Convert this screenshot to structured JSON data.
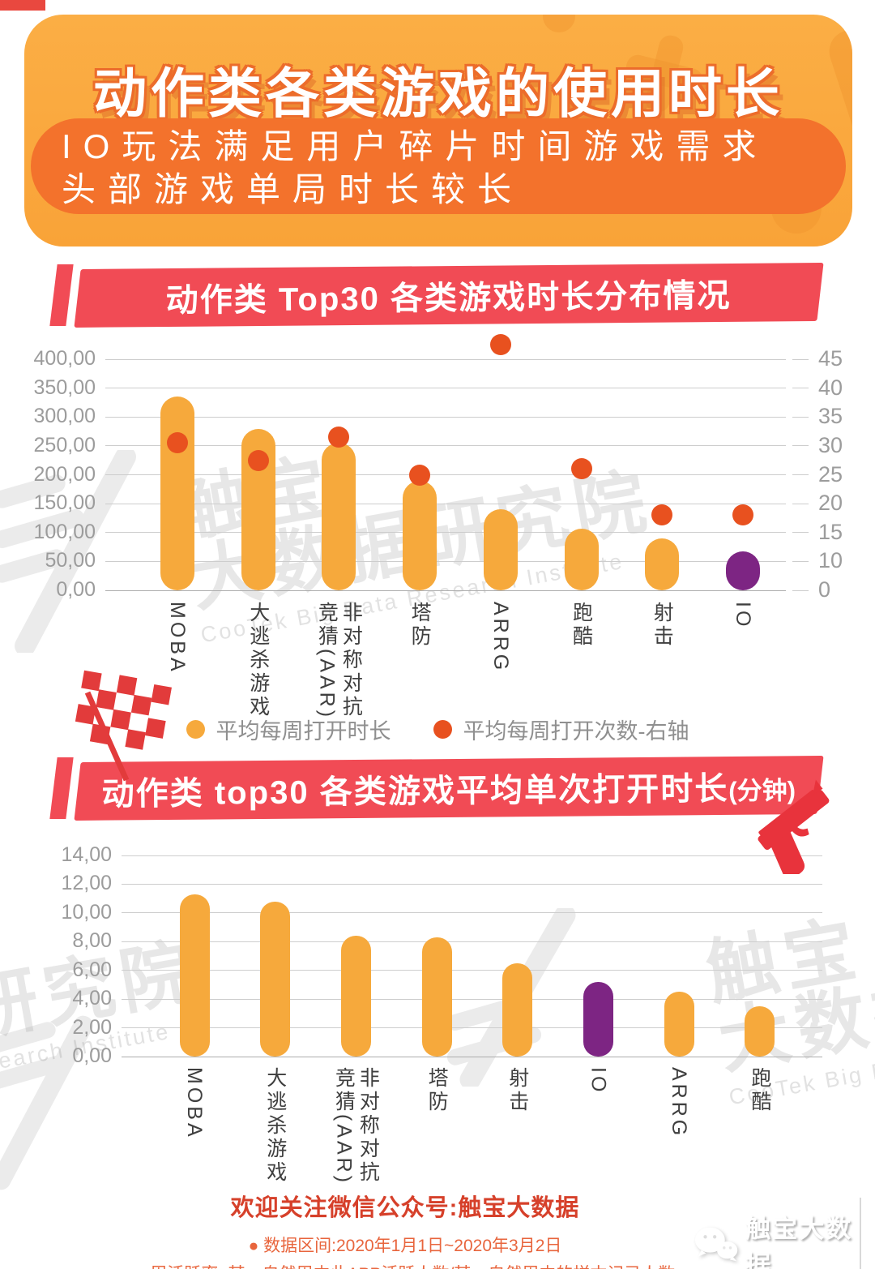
{
  "header": {
    "title": "动作类各类游戏的使用时长",
    "subtitle1": "IO玩法满足用户碎片时间游戏需求",
    "subtitle2": "头部游戏单局时长较长"
  },
  "colors": {
    "bar": "#F6A93C",
    "highlight": "#7D2583",
    "dot": "#E8511F",
    "banner": "#F14B55",
    "grid": "#CDCDCD",
    "baseline": "#ADADAD",
    "axis_text": "#9C9C9C",
    "category_text": "#3F3F3F",
    "header_bg": "#FAAA3E",
    "header_inner": "#F3722C"
  },
  "banners": [
    {
      "title": "动作类 Top30 各类游戏时长分布情况",
      "suffix": ""
    },
    {
      "title": "动作类 top30 各类游戏平均单次打开时长",
      "suffix": "(分钟)"
    }
  ],
  "legend": {
    "items": [
      {
        "label": "平均每周打开时长"
      },
      {
        "label": "平均每周打开次数-右轴"
      }
    ]
  },
  "chart_data": [
    {
      "type": "bar",
      "title": "动作类 Top30 各类游戏时长分布情况",
      "categories": [
        "MOBA",
        "大逃杀游戏",
        "非对称对抗竞猜(AAR)",
        "塔防",
        "ARRG",
        "跑酷",
        "射击",
        "IO"
      ],
      "series": [
        {
          "name": "平均每周打开时长",
          "type": "bar",
          "axis": "left",
          "values": [
            335,
            280,
            255,
            190,
            140,
            107,
            90,
            67
          ]
        },
        {
          "name": "平均每周打开次数-右轴",
          "type": "scatter",
          "axis": "right",
          "values": [
            30.5,
            27.5,
            31.5,
            25,
            47.5,
            26,
            18,
            18
          ]
        }
      ],
      "left_axis_ticks": [
        "400,00",
        "350,00",
        "300,00",
        "250,00",
        "200,00",
        "150,00",
        "100,00",
        "50,00",
        "0,00"
      ],
      "right_axis_ticks": [
        "45",
        "40",
        "35",
        "30",
        "25",
        "20",
        "15",
        "10",
        "0"
      ],
      "left_axis_range": [
        0,
        400
      ],
      "grid": true,
      "legend_position": "bottom",
      "highlight_category": "IO"
    },
    {
      "type": "bar",
      "title": "动作类 top30 各类游戏平均单次打开时长(分钟)",
      "categories": [
        "MOBA",
        "大逃杀游戏",
        "非对称对抗竞猜(AAR)",
        "塔防",
        "射击",
        "IO",
        "ARRG",
        "跑酷"
      ],
      "values": [
        11.3,
        10.8,
        8.4,
        8.3,
        6.5,
        5.2,
        4.5,
        3.5
      ],
      "axis_ticks": [
        "14,00",
        "12,00",
        "10,00",
        "8,00",
        "6,00",
        "4,00",
        "2,00",
        "0,00"
      ],
      "ylim": [
        0,
        14
      ],
      "grid": true,
      "highlight_category": "IO"
    }
  ],
  "watermark": {
    "line1": "触宝",
    "line2": "大数据研究院",
    "en": "CooTek Big Data Research Institute"
  },
  "footer": {
    "line1": "欢迎关注微信公众号:触宝大数据",
    "line2": "● 数据区间:2020年1月1日~2020年3月2日",
    "line3": "● 周活跃率=某一自然周内此APP活跃人数/某一自然周内的样本记录人数",
    "logo_text": "触宝大数据"
  }
}
